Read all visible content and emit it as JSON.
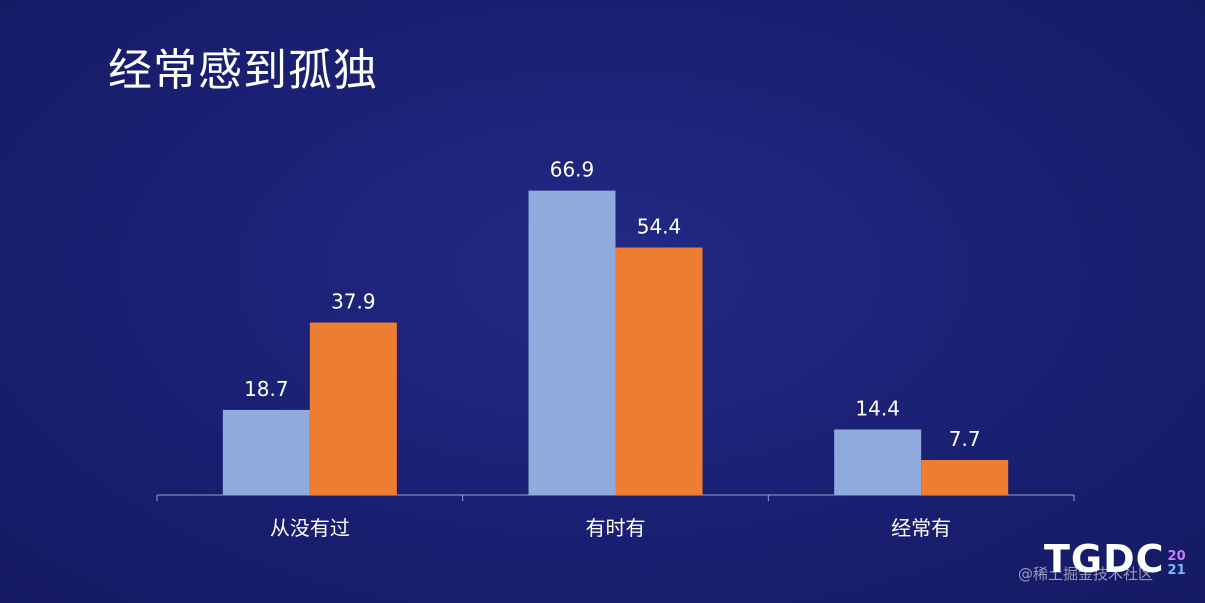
{
  "slide": {
    "title": "经常感到孤独",
    "logo": {
      "letters": "TGDC",
      "year_top": "20",
      "year_bottom": "21"
    },
    "watermark": "@稀土掘金技术社区"
  },
  "colors": {
    "series_1": "#8faadc",
    "series_2": "#ed7d31",
    "axis": "#9aa0c8",
    "label_text": "#ffffff"
  },
  "chart_data": {
    "type": "bar",
    "title": "经常感到孤独",
    "xlabel": "",
    "ylabel": "",
    "categories": [
      "从没有过",
      "有时有",
      "经常有"
    ],
    "series": [
      {
        "values": [
          18.7,
          66.9,
          14.4
        ]
      },
      {
        "values": [
          37.9,
          54.4,
          7.7
        ]
      }
    ],
    "ylim": [
      0,
      80
    ],
    "grid": false,
    "legend": "none",
    "data_labels": true
  }
}
